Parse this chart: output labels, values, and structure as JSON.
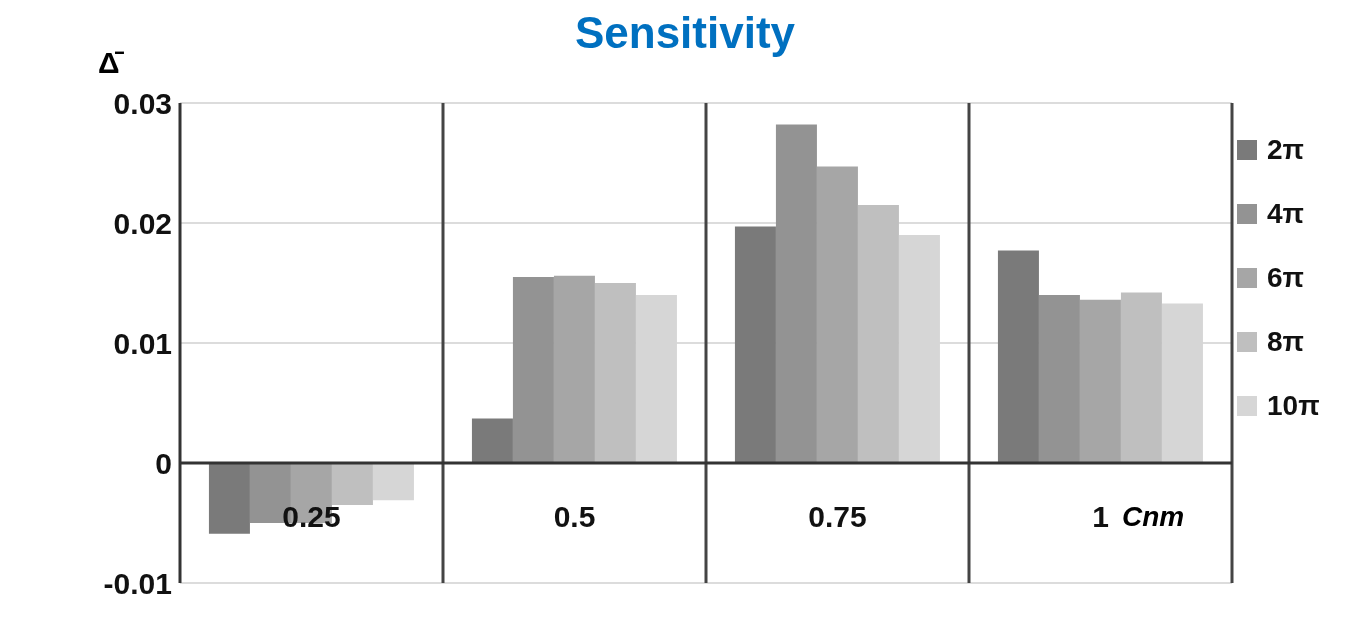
{
  "chart_data": {
    "type": "bar",
    "title": "Sensitivity",
    "ylabel": "Δ̄",
    "xlabel": "Cnm",
    "categories": [
      "0.25",
      "0.5",
      "0.75",
      "1"
    ],
    "series": [
      {
        "name": "2π",
        "color": "#7a7a7a",
        "values": [
          -0.0059,
          0.0037,
          0.0197,
          0.0177
        ]
      },
      {
        "name": "4π",
        "color": "#939393",
        "values": [
          -0.005,
          0.0155,
          0.0282,
          0.014
        ]
      },
      {
        "name": "6π",
        "color": "#a6a6a6",
        "values": [
          -0.005,
          0.0156,
          0.0247,
          0.0136
        ]
      },
      {
        "name": "8π",
        "color": "#bfbfbf",
        "values": [
          -0.0035,
          0.015,
          0.0215,
          0.0142
        ]
      },
      {
        "name": "10π",
        "color": "#d6d6d6",
        "values": [
          -0.0031,
          0.014,
          0.019,
          0.0133
        ]
      }
    ],
    "ylim": [
      -0.01,
      0.03
    ],
    "yticks": [
      -0.01,
      0,
      0.01,
      0.02,
      0.03
    ],
    "grid": true,
    "legend": "right"
  }
}
